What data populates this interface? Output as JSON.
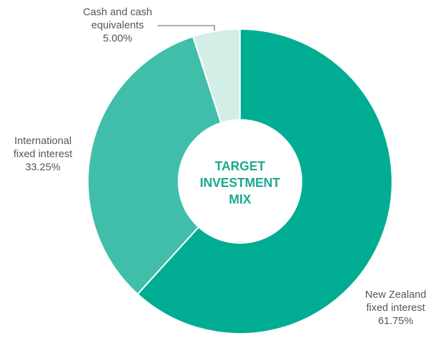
{
  "chart_data": {
    "type": "donut",
    "center_label": "TARGET\nINVESTMENT\nMIX",
    "categories": [
      "New Zealand\nfixed interest",
      "International\nfixed interest",
      "Cash and cash\nequivalents"
    ],
    "values": [
      61.75,
      33.25,
      5.0
    ],
    "value_labels": [
      "61.75%",
      "33.25%",
      "5.00%"
    ],
    "colors": [
      "#00ad93",
      "#40bea9",
      "#d3eee7"
    ]
  }
}
